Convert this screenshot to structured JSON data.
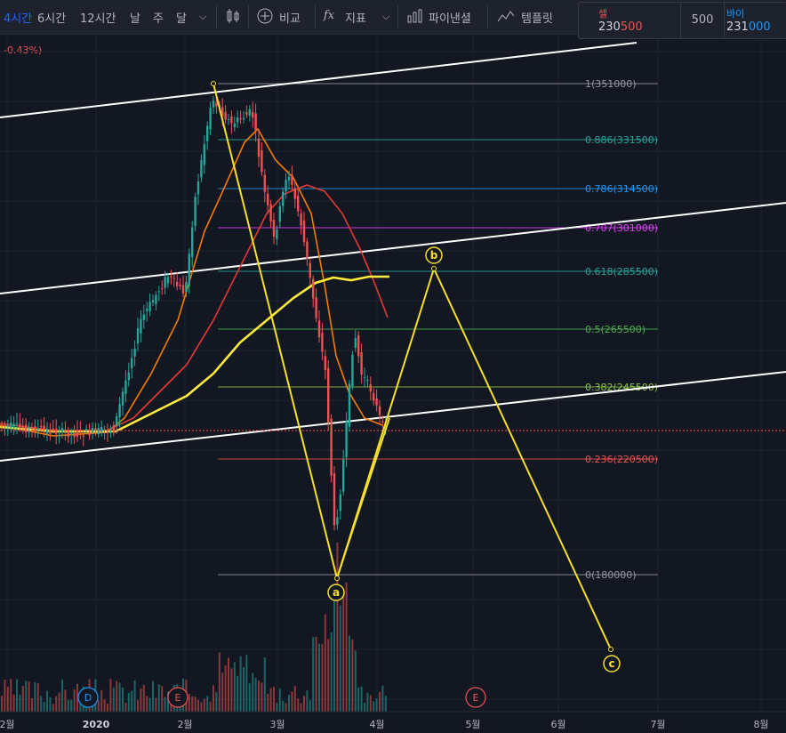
{
  "toolbar": {
    "intervals": [
      "4시간",
      "6시간",
      "12시간",
      "날",
      "주",
      "달"
    ],
    "compare_label": "비교",
    "indicators_label": "지표",
    "financials_label": "파이낸셜",
    "templates_label": "템플릿"
  },
  "trade": {
    "sell_label": "셀",
    "sell_price_a": "230",
    "sell_price_b": "500",
    "quantity": "500",
    "buy_label": "바이",
    "buy_price_a": "231",
    "buy_price_b": "000"
  },
  "change_pct": "-0.43%)",
  "fib_levels": [
    {
      "label": "1(351000)",
      "color": "#9598a1"
    },
    {
      "label": "0.886(331500)",
      "color": "#26a69a"
    },
    {
      "label": "0.786(314500)",
      "color": "#2196f3"
    },
    {
      "label": "0.707(301000)",
      "color": "#e040fb"
    },
    {
      "label": "0.618(285500)",
      "color": "#26a69a"
    },
    {
      "label": "0.5(265500)",
      "color": "#4caf50"
    },
    {
      "label": "0.382(245500)",
      "color": "#8bc34a"
    },
    {
      "label": "0.236(220500)",
      "color": "#ef5350"
    },
    {
      "label": "0(180000)",
      "color": "#9598a1"
    }
  ],
  "wave_labels": [
    "a",
    "b",
    "c"
  ],
  "event_markers": [
    "D",
    "E",
    "E"
  ],
  "time_axis": [
    "2월",
    "2020",
    "2월",
    "3월",
    "4월",
    "5월",
    "6월",
    "7월",
    "8월"
  ],
  "colors": {
    "background": "#131722",
    "up": "#26a69a",
    "down": "#ef5350",
    "wave": "#f5e02c",
    "channel": "#ffffff",
    "ma_fast": "#f57c00",
    "ma_mid": "#e53935",
    "ma_slow": "#ffeb3b"
  }
}
